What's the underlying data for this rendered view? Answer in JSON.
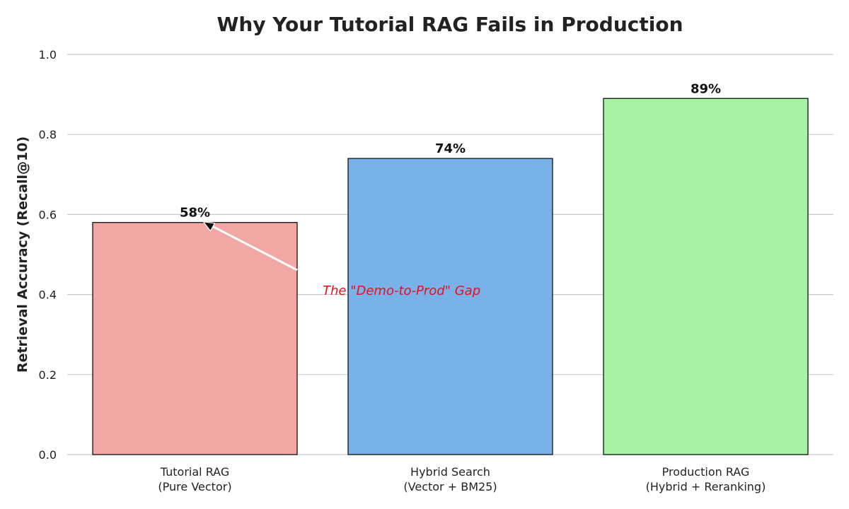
{
  "chart_data": {
    "type": "bar",
    "title": "Why Your Tutorial RAG Fails in Production",
    "xlabel": "",
    "ylabel": "Retrieval Accuracy (Recall@10)",
    "ylim": [
      0,
      1.0
    ],
    "yticks": [
      "0.0",
      "0.2",
      "0.4",
      "0.6",
      "0.8",
      "1.0"
    ],
    "ytick_values": [
      0,
      0.2,
      0.4,
      0.6,
      0.8,
      1.0
    ],
    "grid": "horizontal",
    "categories": [
      [
        "Tutorial RAG",
        "(Pure Vector)"
      ],
      [
        "Hybrid Search",
        "(Vector + BM25)"
      ],
      [
        "Production RAG",
        "(Hybrid + Reranking)"
      ]
    ],
    "values": [
      0.58,
      0.74,
      0.89
    ],
    "data_labels": [
      "58%",
      "74%",
      "89%"
    ],
    "colors": [
      "#f2a7a7",
      "#79b2e8",
      "#a8f2a6"
    ],
    "annotation": {
      "text": "The \"Demo-to-Prod\" Gap",
      "color": "#e8111b",
      "points_to_category": 0,
      "arrow_color": "#ffffff"
    }
  }
}
